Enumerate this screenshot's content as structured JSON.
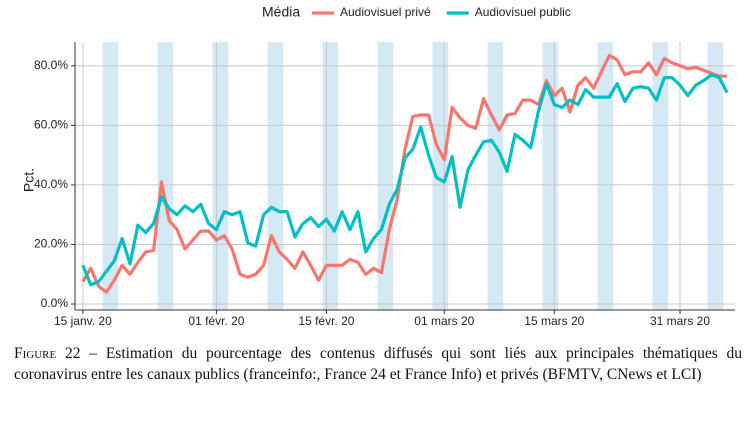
{
  "chart_data": {
    "type": "line",
    "legend_title": "Média",
    "legend_position": "top",
    "ylabel": "Pct.",
    "x": [
      "2020-01-15",
      "2020-01-16",
      "2020-01-17",
      "2020-01-18",
      "2020-01-19",
      "2020-01-20",
      "2020-01-21",
      "2020-01-22",
      "2020-01-23",
      "2020-01-24",
      "2020-01-25",
      "2020-01-26",
      "2020-01-27",
      "2020-01-28",
      "2020-01-29",
      "2020-01-30",
      "2020-01-31",
      "2020-02-01",
      "2020-02-02",
      "2020-02-03",
      "2020-02-04",
      "2020-02-05",
      "2020-02-06",
      "2020-02-07",
      "2020-02-08",
      "2020-02-09",
      "2020-02-10",
      "2020-02-11",
      "2020-02-12",
      "2020-02-13",
      "2020-02-14",
      "2020-02-15",
      "2020-02-16",
      "2020-02-17",
      "2020-02-18",
      "2020-02-19",
      "2020-02-20",
      "2020-02-21",
      "2020-02-22",
      "2020-02-23",
      "2020-02-24",
      "2020-02-25",
      "2020-02-26",
      "2020-02-27",
      "2020-02-28",
      "2020-02-29",
      "2020-03-01",
      "2020-03-02",
      "2020-03-03",
      "2020-03-04",
      "2020-03-05",
      "2020-03-06",
      "2020-03-07",
      "2020-03-08",
      "2020-03-09",
      "2020-03-10",
      "2020-03-11",
      "2020-03-12",
      "2020-03-13",
      "2020-03-14",
      "2020-03-15",
      "2020-03-16",
      "2020-03-17",
      "2020-03-18",
      "2020-03-19",
      "2020-03-20",
      "2020-03-21",
      "2020-03-22",
      "2020-03-23",
      "2020-03-24",
      "2020-03-25",
      "2020-03-26",
      "2020-03-27",
      "2020-03-28",
      "2020-03-29",
      "2020-03-30",
      "2020-03-31",
      "2020-04-01",
      "2020-04-02",
      "2020-04-03",
      "2020-04-04",
      "2020-04-05",
      "2020-04-06"
    ],
    "series": [
      {
        "name": "Audiovisuel privé",
        "color": "#F8766D",
        "values": [
          7.5,
          12,
          6,
          4,
          8,
          13,
          10,
          14,
          17.5,
          18,
          41,
          28,
          25,
          18.5,
          21.5,
          24.5,
          24.5,
          21.5,
          23,
          18.5,
          10,
          9,
          10,
          13,
          23,
          17.5,
          15,
          12,
          17.5,
          13,
          8,
          13,
          13,
          13,
          15,
          14,
          10,
          12,
          10.5,
          25,
          35,
          52,
          63,
          63.5,
          63.5,
          53.5,
          48.5,
          66,
          62.5,
          60,
          59,
          69,
          63.5,
          58.5,
          63.5,
          64,
          68.5,
          68.5,
          67,
          75,
          70,
          72.5,
          64.5,
          73.5,
          76,
          72.5,
          78,
          83.5,
          82,
          77,
          78,
          78,
          81,
          77,
          82.5,
          81,
          80,
          79,
          79.5,
          78.5,
          77.5,
          76.5,
          76.5
        ]
      },
      {
        "name": "Audiovisuel public",
        "color": "#00BFC4",
        "values": [
          13,
          6.5,
          7.5,
          11,
          14.5,
          22,
          13.5,
          26.5,
          24,
          27,
          36,
          32,
          30,
          33,
          31,
          33.5,
          27,
          25,
          31,
          30,
          31,
          20.5,
          19.5,
          30,
          32.5,
          31,
          31,
          22.5,
          27,
          29,
          26,
          28.5,
          24.5,
          31,
          25,
          31,
          17.5,
          22,
          25,
          33.5,
          38.5,
          49,
          52,
          59.5,
          50,
          42.5,
          41,
          49.5,
          32.5,
          45,
          50,
          54.5,
          55,
          51,
          44.5,
          57,
          55,
          52.5,
          65,
          74,
          67,
          66,
          68.5,
          67,
          72,
          69.5,
          69.5,
          69.5,
          74,
          68,
          72.5,
          73,
          72.5,
          68.5,
          76,
          76,
          73.5,
          70,
          73.5,
          75,
          77,
          76,
          71
        ]
      }
    ],
    "xlim": [
      "2020-01-14",
      "2020-04-07"
    ],
    "xticks": [
      {
        "value": "2020-01-15",
        "label": "15 janv. 20"
      },
      {
        "value": "2020-02-01",
        "label": "01 févr. 20"
      },
      {
        "value": "2020-02-15",
        "label": "15 févr. 20"
      },
      {
        "value": "2020-03-01",
        "label": "01 mars 20"
      },
      {
        "value": "2020-03-15",
        "label": "15 mars 20"
      },
      {
        "value": "2020-03-31",
        "label": "31 mars 20"
      }
    ],
    "ylim": [
      -2,
      88
    ],
    "yticks": [
      {
        "value": 0,
        "label": "0.0%"
      },
      {
        "value": 20,
        "label": "20.0%"
      },
      {
        "value": 40,
        "label": "40.0%"
      },
      {
        "value": 60,
        "label": "60.0%"
      },
      {
        "value": 80,
        "label": "80.0%"
      }
    ],
    "grid": true,
    "weekend_shading": true
  },
  "caption": {
    "label": "Figure 22",
    "text": "– Estimation du pourcentage des contenus diffusés qui sont liés aux principales thématiques du coronavirus entre les canaux publics (franceinfo:, France 24 et France Info) et privés (BFMTV, CNews et LCI)"
  }
}
